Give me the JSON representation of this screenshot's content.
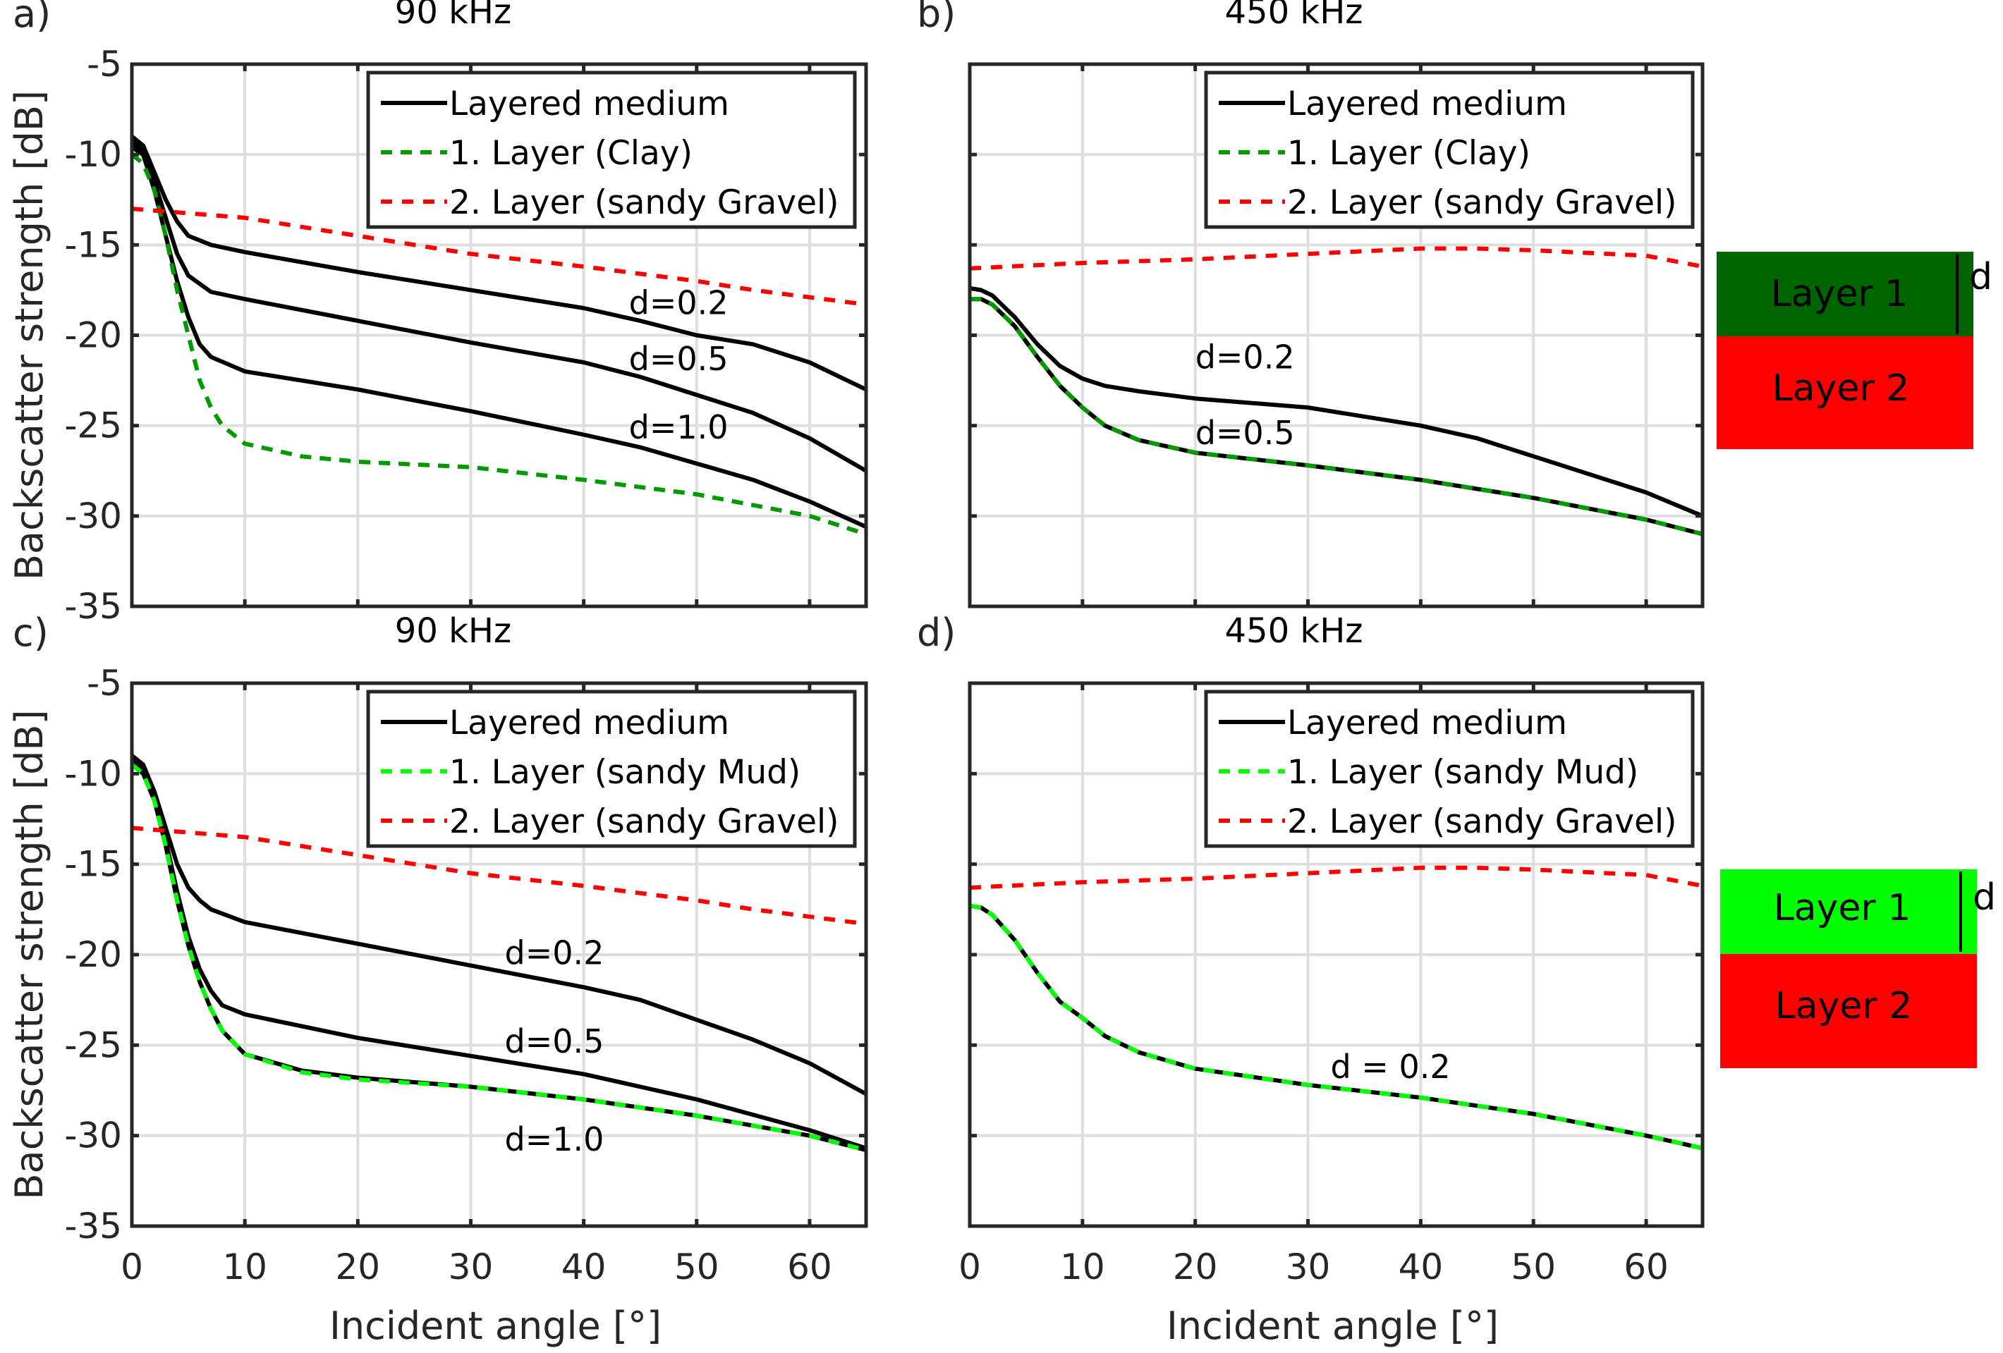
{
  "colors": {
    "layered": "#000000",
    "clay": "#009900",
    "mud": "#00ff00",
    "gravel": "#ff0000",
    "layer1_dark": "#006400",
    "layer1_bright": "#00ff00",
    "layer2": "#ff0000",
    "grid": "#dedede",
    "axis": "#262626"
  },
  "chart_data": [
    {
      "panel": "a)",
      "type": "line",
      "title": "90 kHz",
      "xlabel": "",
      "ylabel": "Backscatter strength [dB]",
      "xlim": [
        0,
        65
      ],
      "ylim": [
        -35,
        -5
      ],
      "grid": true,
      "legend_position": "top-right",
      "xticks": [
        0,
        10,
        20,
        30,
        40,
        50,
        60
      ],
      "yticks": [
        -5,
        -10,
        -15,
        -20,
        -25,
        -30,
        -35
      ],
      "show_xtick_labels": false,
      "show_ytick_labels": true,
      "series": [
        {
          "name": "Layered medium",
          "style": "layered",
          "legend": true,
          "x": [
            0,
            1,
            2,
            3,
            4,
            5,
            7,
            10,
            20,
            30,
            40,
            45,
            50,
            55,
            60,
            65
          ],
          "y": [
            -9,
            -9.5,
            -11,
            -12.5,
            -13.7,
            -14.5,
            -15,
            -15.4,
            -16.5,
            -17.5,
            -18.5,
            -19.2,
            -20,
            -20.5,
            -21.5,
            -23
          ]
        },
        {
          "name": "Layered medium d=0.5",
          "style": "layered",
          "legend": false,
          "x": [
            0,
            1,
            2,
            3,
            4,
            5,
            7,
            10,
            20,
            30,
            40,
            45,
            50,
            55,
            60,
            65
          ],
          "y": [
            -9.3,
            -9.8,
            -11.5,
            -13.5,
            -15.5,
            -16.7,
            -17.6,
            -18,
            -19.2,
            -20.4,
            -21.5,
            -22.3,
            -23.3,
            -24.3,
            -25.7,
            -27.5
          ]
        },
        {
          "name": "Layered medium d=1.0",
          "style": "layered",
          "legend": false,
          "x": [
            0,
            1,
            2,
            3,
            4,
            5,
            6,
            7,
            10,
            20,
            30,
            40,
            45,
            50,
            55,
            60,
            65
          ],
          "y": [
            -9.6,
            -10,
            -12,
            -14.5,
            -17,
            -19,
            -20.5,
            -21.2,
            -22,
            -23,
            -24.2,
            -25.5,
            -26.2,
            -27.1,
            -28,
            -29.2,
            -30.6
          ]
        },
        {
          "name": "1. Layer (Clay)",
          "style": "clay",
          "legend": true,
          "x": [
            0,
            1,
            2,
            3,
            4,
            5,
            6,
            7,
            8,
            10,
            15,
            20,
            30,
            40,
            50,
            60,
            65
          ],
          "y": [
            -10,
            -10.5,
            -12,
            -14.5,
            -17.5,
            -20,
            -22.5,
            -24,
            -25,
            -26,
            -26.7,
            -27,
            -27.3,
            -28,
            -28.8,
            -30,
            -31
          ]
        },
        {
          "name": "2. Layer (sandy Gravel)",
          "style": "gravel",
          "legend": true,
          "x": [
            0,
            10,
            20,
            30,
            40,
            50,
            55,
            65
          ],
          "y": [
            -13,
            -13.5,
            -14.5,
            -15.5,
            -16.2,
            -17,
            -17.5,
            -18.3
          ]
        }
      ],
      "annotations": [
        {
          "text": "d=0.2",
          "x": 44,
          "y": -18.2
        },
        {
          "text": "d=0.5",
          "x": 44,
          "y": -21.3
        },
        {
          "text": "d=1.0",
          "x": 44,
          "y": -25.1
        }
      ]
    },
    {
      "panel": "b)",
      "type": "line",
      "title": "450 kHz",
      "xlabel": "",
      "ylabel": "",
      "xlim": [
        0,
        65
      ],
      "ylim": [
        -35,
        -5
      ],
      "grid": true,
      "legend_position": "top-right",
      "xticks": [
        0,
        10,
        20,
        30,
        40,
        50,
        60
      ],
      "yticks": [
        -5,
        -10,
        -15,
        -20,
        -25,
        -30,
        -35
      ],
      "show_xtick_labels": false,
      "show_ytick_labels": false,
      "series": [
        {
          "name": "Layered medium",
          "style": "layered",
          "legend": true,
          "x": [
            0,
            1,
            2,
            4,
            6,
            8,
            10,
            12,
            15,
            20,
            30,
            40,
            45,
            50,
            60,
            65
          ],
          "y": [
            -17.4,
            -17.5,
            -17.8,
            -19,
            -20.5,
            -21.7,
            -22.4,
            -22.8,
            -23.1,
            -23.5,
            -24,
            -25,
            -25.7,
            -26.7,
            -28.7,
            -30
          ]
        },
        {
          "name": "Layered medium d=0.5",
          "style": "layered",
          "legend": false,
          "x": [
            0,
            1,
            2,
            4,
            6,
            8,
            10,
            12,
            15,
            20,
            30,
            40,
            50,
            60,
            65
          ],
          "y": [
            -18,
            -18,
            -18.3,
            -19.5,
            -21.2,
            -22.8,
            -24,
            -25,
            -25.8,
            -26.5,
            -27.2,
            -28,
            -29,
            -30.2,
            -31
          ]
        },
        {
          "name": "1. Layer (Clay)",
          "style": "clay",
          "legend": true,
          "x": [
            0,
            1,
            2,
            4,
            6,
            8,
            10,
            12,
            15,
            20,
            30,
            40,
            50,
            60,
            65
          ],
          "y": [
            -18,
            -18,
            -18.3,
            -19.5,
            -21.2,
            -22.8,
            -24,
            -25,
            -25.8,
            -26.5,
            -27.2,
            -28,
            -29,
            -30.2,
            -31
          ]
        },
        {
          "name": "2. Layer (sandy Gravel)",
          "style": "gravel",
          "legend": true,
          "x": [
            0,
            10,
            20,
            30,
            40,
            45,
            50,
            60,
            65
          ],
          "y": [
            -16.3,
            -16,
            -15.8,
            -15.5,
            -15.2,
            -15.2,
            -15.3,
            -15.6,
            -16.2
          ]
        }
      ],
      "annotations": [
        {
          "text": "d=0.2",
          "x": 20,
          "y": -21.2
        },
        {
          "text": "d=0.5",
          "x": 20,
          "y": -25.4
        }
      ]
    },
    {
      "panel": "c)",
      "type": "line",
      "title": "90 kHz",
      "xlabel": "Incident angle [°]",
      "ylabel": "Backscatter strength [dB]",
      "xlim": [
        0,
        65
      ],
      "ylim": [
        -35,
        -5
      ],
      "grid": true,
      "legend_position": "top-right",
      "xticks": [
        0,
        10,
        20,
        30,
        40,
        50,
        60
      ],
      "yticks": [
        -5,
        -10,
        -15,
        -20,
        -25,
        -30,
        -35
      ],
      "show_xtick_labels": true,
      "show_ytick_labels": true,
      "series": [
        {
          "name": "Layered medium",
          "style": "layered",
          "legend": true,
          "x": [
            0,
            1,
            2,
            3,
            4,
            5,
            6,
            7,
            10,
            20,
            30,
            40,
            45,
            50,
            55,
            60,
            65
          ],
          "y": [
            -9,
            -9.5,
            -11,
            -13,
            -15,
            -16.3,
            -17,
            -17.5,
            -18.2,
            -19.4,
            -20.6,
            -21.8,
            -22.5,
            -23.6,
            -24.7,
            -26,
            -27.7
          ]
        },
        {
          "name": "Layered medium d=0.5",
          "style": "layered",
          "legend": false,
          "x": [
            0,
            1,
            2,
            3,
            4,
            5,
            6,
            7,
            8,
            10,
            20,
            30,
            40,
            50,
            60,
            65
          ],
          "y": [
            -9.3,
            -9.8,
            -11.5,
            -13.7,
            -16.5,
            -19,
            -20.8,
            -22,
            -22.8,
            -23.3,
            -24.6,
            -25.6,
            -26.6,
            -28,
            -29.7,
            -30.7
          ]
        },
        {
          "name": "Layered medium d=1.0",
          "style": "layered",
          "legend": false,
          "x": [
            0,
            1,
            2,
            3,
            4,
            5,
            6,
            7,
            8,
            10,
            15,
            20,
            30,
            40,
            50,
            60,
            65
          ],
          "y": [
            -9.5,
            -10,
            -11.5,
            -14,
            -17,
            -19.5,
            -21.5,
            -23,
            -24.2,
            -25.5,
            -26.4,
            -26.8,
            -27.3,
            -28,
            -28.9,
            -30,
            -30.8
          ]
        },
        {
          "name": "1. Layer (sandy Mud)",
          "style": "mud",
          "legend": true,
          "x": [
            0,
            1,
            2,
            3,
            4,
            5,
            6,
            7,
            8,
            10,
            15,
            20,
            30,
            40,
            50,
            60,
            65
          ],
          "y": [
            -9.5,
            -10,
            -11.5,
            -14,
            -17,
            -19.5,
            -21.5,
            -23,
            -24.2,
            -25.5,
            -26.5,
            -26.9,
            -27.3,
            -28,
            -28.9,
            -30,
            -30.8
          ]
        },
        {
          "name": "2. Layer (sandy Gravel)",
          "style": "gravel",
          "legend": true,
          "x": [
            0,
            10,
            20,
            30,
            40,
            50,
            55,
            65
          ],
          "y": [
            -13,
            -13.5,
            -14.5,
            -15.5,
            -16.2,
            -17,
            -17.5,
            -18.3
          ]
        }
      ],
      "annotations": [
        {
          "text": "d=0.2",
          "x": 33,
          "y": -19.9
        },
        {
          "text": "d=0.5",
          "x": 33,
          "y": -24.8
        },
        {
          "text": "d=1.0",
          "x": 33,
          "y": -30.2
        }
      ]
    },
    {
      "panel": "d)",
      "type": "line",
      "title": "450 kHz",
      "xlabel": "Incident angle [°]",
      "ylabel": "",
      "xlim": [
        0,
        65
      ],
      "ylim": [
        -35,
        -5
      ],
      "grid": true,
      "legend_position": "top-right",
      "xticks": [
        0,
        10,
        20,
        30,
        40,
        50,
        60
      ],
      "yticks": [
        -5,
        -10,
        -15,
        -20,
        -25,
        -30,
        -35
      ],
      "show_xtick_labels": true,
      "show_ytick_labels": false,
      "series": [
        {
          "name": "Layered medium",
          "style": "layered",
          "legend": true,
          "x": [
            0,
            1,
            2,
            4,
            6,
            8,
            10,
            12,
            15,
            20,
            30,
            40,
            50,
            60,
            65
          ],
          "y": [
            -17.3,
            -17.4,
            -17.8,
            -19.2,
            -21,
            -22.6,
            -23.5,
            -24.5,
            -25.4,
            -26.3,
            -27.2,
            -27.9,
            -28.8,
            -30,
            -30.7
          ]
        },
        {
          "name": "1. Layer (sandy Mud)",
          "style": "mud",
          "legend": true,
          "x": [
            0,
            1,
            2,
            4,
            6,
            8,
            10,
            12,
            15,
            20,
            30,
            40,
            50,
            60,
            65
          ],
          "y": [
            -17.3,
            -17.4,
            -17.8,
            -19.2,
            -21,
            -22.6,
            -23.5,
            -24.5,
            -25.4,
            -26.3,
            -27.2,
            -27.9,
            -28.8,
            -30,
            -30.7
          ]
        },
        {
          "name": "2. Layer (sandy Gravel)",
          "style": "gravel",
          "legend": true,
          "x": [
            0,
            10,
            20,
            30,
            40,
            45,
            50,
            60,
            65
          ],
          "y": [
            -16.3,
            -16,
            -15.8,
            -15.5,
            -15.2,
            -15.2,
            -15.3,
            -15.6,
            -16.2
          ]
        }
      ],
      "annotations": [
        {
          "text": "d = 0.2",
          "x": 32,
          "y": -26.2
        }
      ]
    }
  ],
  "schematics": [
    {
      "layer1": "Layer 1",
      "layer2": "Layer 2",
      "thickness_label": "d",
      "layer1_color": "#006400"
    },
    {
      "layer1": "Layer 1",
      "layer2": "Layer 2",
      "thickness_label": "d",
      "layer1_color": "#00ff00"
    }
  ]
}
